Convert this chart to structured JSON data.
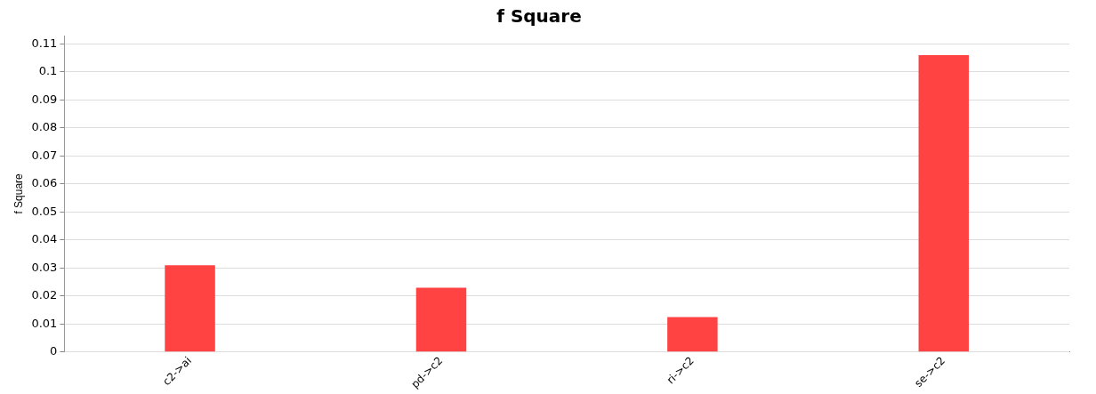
{
  "chart_data": {
    "type": "bar",
    "title": "f Square",
    "ylabel": "f Square",
    "categories": [
      "c2->ai",
      "pd->c2",
      "ri->c2",
      "se->c2"
    ],
    "values": [
      0.031,
      0.023,
      0.0125,
      0.106
    ],
    "color": "#ff4242",
    "ylim": [
      0,
      0.113
    ],
    "yticks": [
      0,
      0.01,
      0.02,
      0.03,
      0.04,
      0.05,
      0.06,
      0.07,
      0.08,
      0.09,
      0.1,
      0.11
    ],
    "grid": "y",
    "legend": false
  }
}
